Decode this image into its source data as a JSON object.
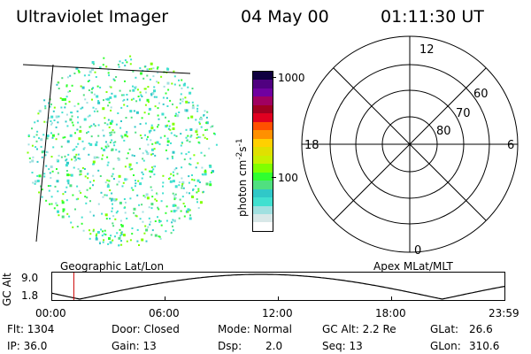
{
  "header": {
    "instrument": "Ultraviolet Imager",
    "date": "04 May 00",
    "time": "01:11:30 UT"
  },
  "image_panel": {
    "label": "Geographic Lat/Lon"
  },
  "colorbar": {
    "unit_label": "photon cm",
    "unit_exp1": "-2",
    "unit_s": "s",
    "unit_exp2": "-1",
    "tick_1000": "1000",
    "tick_100": "100",
    "colors": [
      "#ffffff",
      "#d8e8e8",
      "#a0e0e0",
      "#40e0d0",
      "#30c8c8",
      "#50e080",
      "#30ff30",
      "#80ff00",
      "#c8f000",
      "#e0e000",
      "#ffd000",
      "#ff9000",
      "#ff5000",
      "#e00020",
      "#a00020",
      "#a00060",
      "#7000a0",
      "#500080",
      "#100040"
    ]
  },
  "polar_plot": {
    "label": "Apex MLat/MLT",
    "mlt_12": "12",
    "mlt_18": "18",
    "mlt_6": "6",
    "mlt_0": "0",
    "lat_60": "60",
    "lat_70": "70",
    "lat_80": "80"
  },
  "timeline": {
    "ylabel": "GC Alt",
    "y_max": "9.0",
    "y_min": "1.8",
    "ticks": [
      "00:00",
      "06:00",
      "12:00",
      "18:00",
      "23:59"
    ],
    "marker_time": "01:11:30"
  },
  "info": {
    "flt": "Flt: 1304",
    "ip": "IP: 36.0",
    "door": "Door: Closed",
    "gain": "Gain: 13",
    "mode": "Mode: Normal",
    "dsp_label": "Dsp:",
    "dsp_value": "2.0",
    "gcalt": "GC Alt: 2.2 Re",
    "seq": "Seq: 13",
    "glat_label": "GLat:",
    "glat_value": "26.6",
    "glon_label": "GLon:",
    "glon_value": "310.6"
  }
}
